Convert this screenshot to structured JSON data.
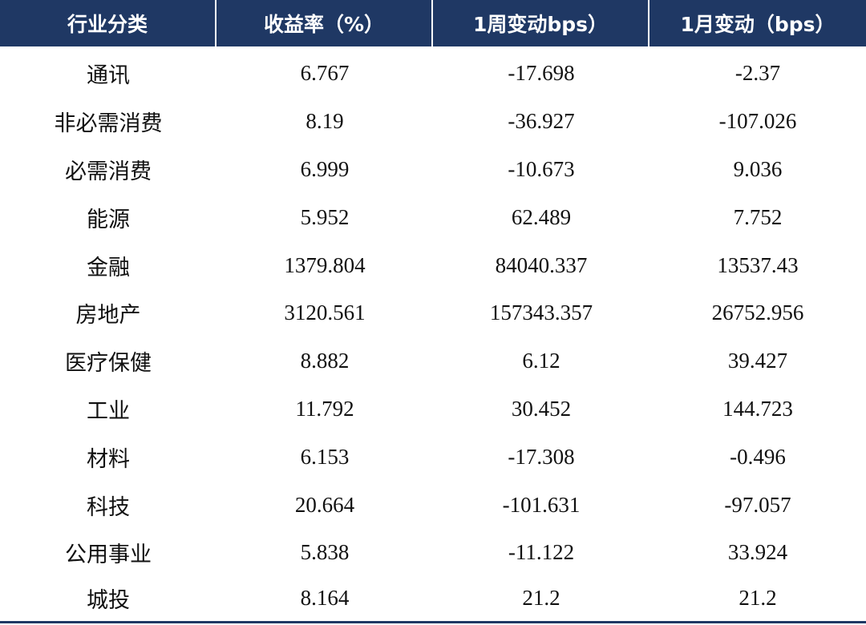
{
  "table": {
    "headers": [
      "行业分类",
      "收益率（%）",
      "1周变动bps）",
      "1月变动（bps）"
    ],
    "rows": [
      [
        "通讯",
        "6.767",
        "-17.698",
        "-2.37"
      ],
      [
        "非必需消费",
        "8.19",
        "-36.927",
        "-107.026"
      ],
      [
        "必需消费",
        "6.999",
        "-10.673",
        "9.036"
      ],
      [
        "能源",
        "5.952",
        "62.489",
        "7.752"
      ],
      [
        "金融",
        "1379.804",
        "84040.337",
        "13537.43"
      ],
      [
        "房地产",
        "3120.561",
        "157343.357",
        "26752.956"
      ],
      [
        "医疗保健",
        "8.882",
        "6.12",
        "39.427"
      ],
      [
        "工业",
        "11.792",
        "30.452",
        "144.723"
      ],
      [
        "材料",
        "6.153",
        "-17.308",
        "-0.496"
      ],
      [
        "科技",
        "20.664",
        "-101.631",
        "-97.057"
      ],
      [
        "公用事业",
        "5.838",
        "-11.122",
        "33.924"
      ],
      [
        "城投",
        "8.164",
        "21.2",
        "21.2"
      ]
    ]
  },
  "colors": {
    "header_background": "#1f3864",
    "header_text": "#ffffff",
    "body_text": "#111111"
  }
}
